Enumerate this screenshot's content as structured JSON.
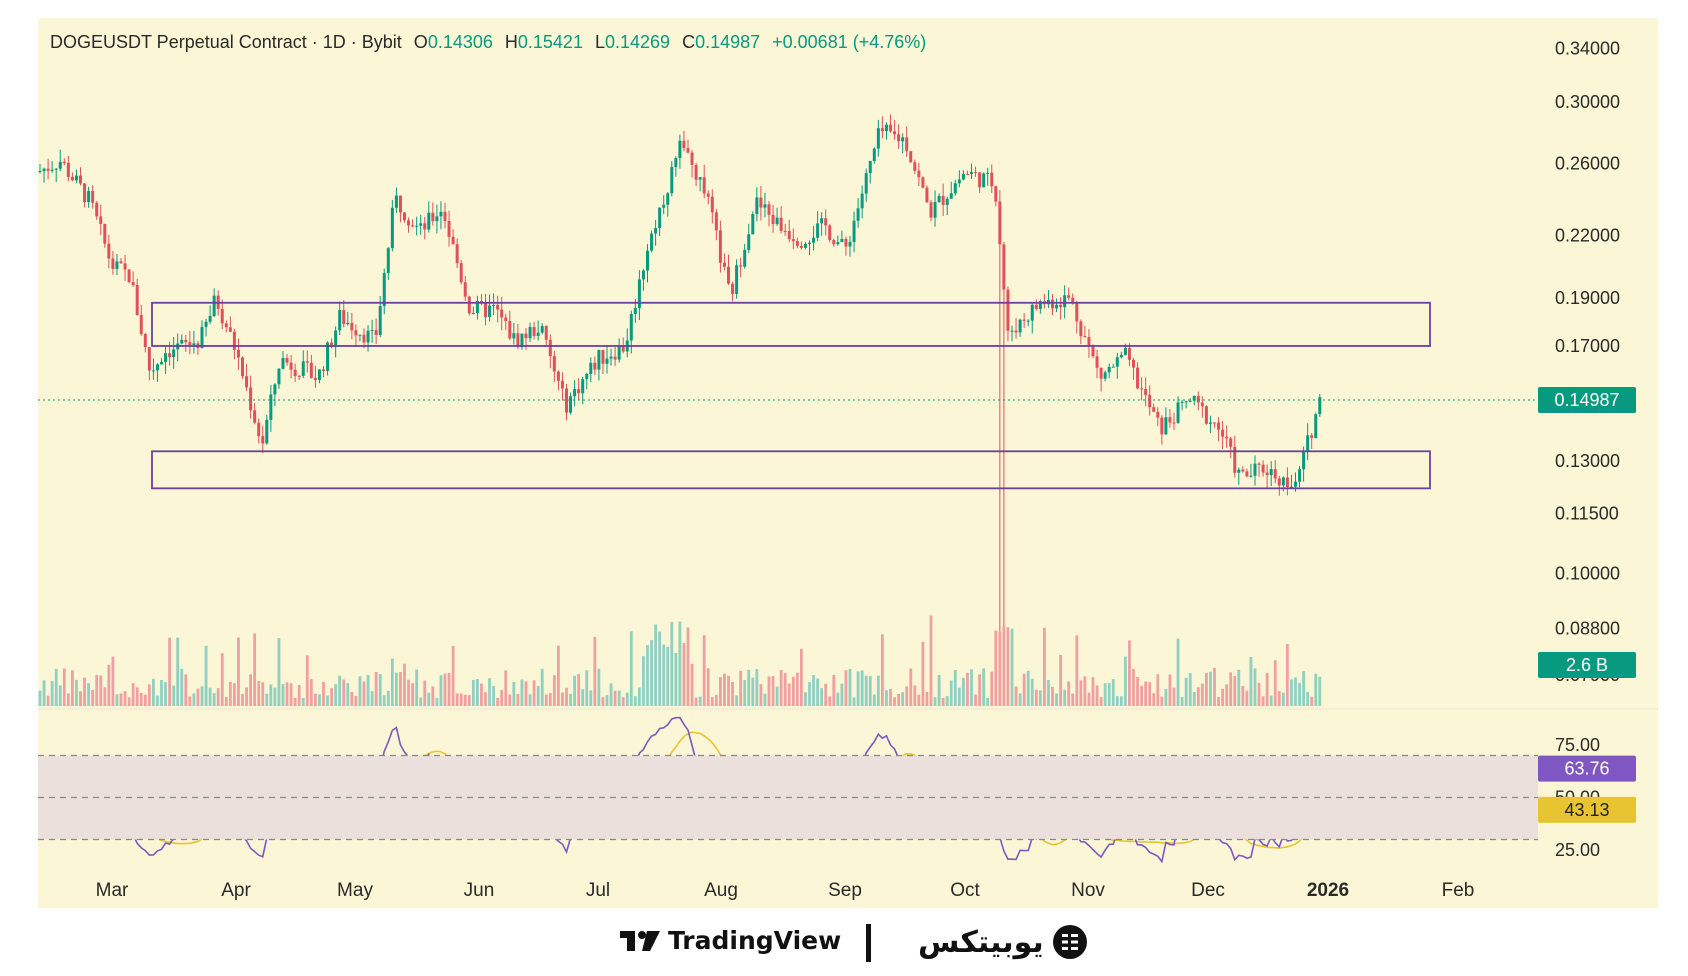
{
  "header": {
    "symbol": "DOGEUSDT Perpetual Contract · 1D · Bybit",
    "o_label": "O",
    "o_value": "0.14306",
    "h_label": "H",
    "h_value": "0.15421",
    "l_label": "L",
    "l_value": "0.14269",
    "c_label": "C",
    "c_value": "0.14987",
    "change": "+0.00681 (+4.76%)"
  },
  "price_badge": "0.14987",
  "volume_badge": "2.6 B",
  "rsi_badge": "63.76",
  "rsi_ma_badge": "43.13",
  "footer": {
    "tradingview_label": "TradingView",
    "brand_label": "یوبیتکس"
  },
  "colors": {
    "background": "#fbf6d6",
    "up": "#089981",
    "down": "#e0505a",
    "volume_up": "#8fd0c0",
    "volume_down": "#f0a0a0",
    "zone_border": "#6b3fa0",
    "rsi_line": "#7e57c2",
    "rsi_ma": "#e8c430",
    "rsi_band": "#ece0dc"
  },
  "icons": [
    "tradingview-logo-icon",
    "ubitex-logo-icon"
  ],
  "chart_data": {
    "type": "candlestick",
    "price_axis": {
      "ticks": [
        "0.34000",
        "0.30000",
        "0.26000",
        "0.22000",
        "0.19000",
        "0.17000",
        "0.13000",
        "0.11500",
        "0.10000",
        "0.08800",
        "0.07900"
      ],
      "scale": "log"
    },
    "time_axis": {
      "ticks": [
        "Mar",
        "Apr",
        "May",
        "Jun",
        "Jul",
        "Aug",
        "Sep",
        "Oct",
        "Nov",
        "Dec",
        "2026",
        "Feb"
      ]
    },
    "price_path_monthly": [
      {
        "month": "Mar",
        "approx_close": 0.205
      },
      {
        "month": "Apr",
        "approx_close": 0.168
      },
      {
        "month": "May",
        "approx_close": 0.222
      },
      {
        "month": "Jun",
        "approx_close": 0.17
      },
      {
        "month": "Jul",
        "approx_close": 0.165
      },
      {
        "month": "Aug",
        "approx_close": 0.225
      },
      {
        "month": "Sep",
        "approx_close": 0.265
      },
      {
        "month": "Oct",
        "approx_close": 0.255
      },
      {
        "month": "Nov",
        "approx_close": 0.168
      },
      {
        "month": "Dec",
        "approx_close": 0.14
      },
      {
        "month": "2026",
        "approx_close": 0.14987
      }
    ],
    "swing_points": [
      {
        "label": "high",
        "price": 0.305,
        "month": "Sep"
      },
      {
        "label": "low",
        "price": 0.116,
        "month": "Dec"
      },
      {
        "label": "spike_low",
        "price": 0.085,
        "month": "Oct"
      }
    ],
    "zones": [
      {
        "name": "resistance",
        "low": 0.17,
        "high": 0.188
      },
      {
        "name": "support",
        "low": 0.122,
        "high": 0.133
      }
    ],
    "last_price": 0.14987,
    "volume_last": "2.6 B",
    "rsi": {
      "ticks": [
        "75.00",
        "50.00",
        "25.00"
      ],
      "levels": [
        70,
        50,
        30
      ],
      "last": 63.76,
      "ma_last": 43.13
    }
  }
}
